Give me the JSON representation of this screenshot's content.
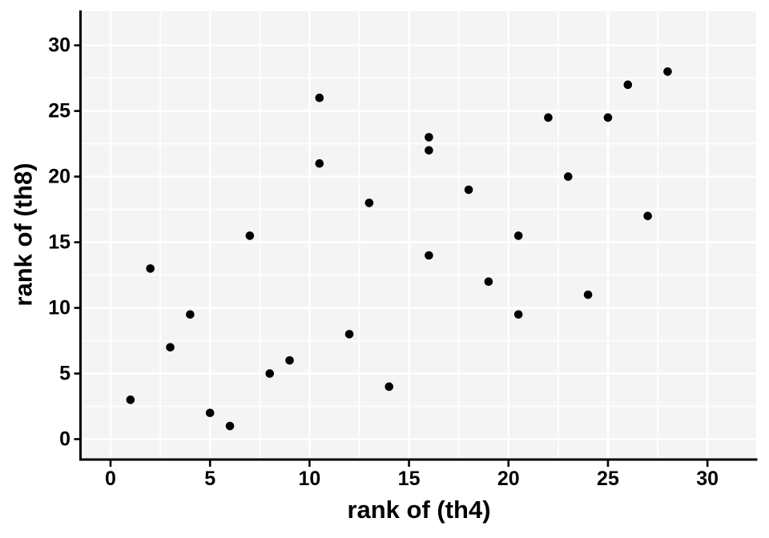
{
  "chart_data": {
    "type": "scatter",
    "title": "",
    "xlabel": "rank of (th4)",
    "ylabel": "rank of (th8)",
    "x_ticks": [
      0,
      5,
      10,
      15,
      20,
      25,
      30
    ],
    "x_tick_labels": [
      "0",
      "5",
      "10",
      "15",
      "20",
      "25",
      "30"
    ],
    "y_ticks": [
      0,
      5,
      10,
      15,
      20,
      25,
      30
    ],
    "y_tick_labels": [
      "0",
      "5",
      "10",
      "15",
      "20",
      "25",
      "30"
    ],
    "x_minor_ticks": [
      2.5,
      7.5,
      12.5,
      17.5,
      22.5,
      27.5
    ],
    "y_minor_ticks": [
      2.5,
      7.5,
      12.5,
      17.5,
      22.5,
      27.5
    ],
    "xlim": [
      -1.45,
      32.45
    ],
    "ylim": [
      -1.43,
      32.6
    ],
    "grid": "major+minor",
    "legend": "none",
    "point_radius": 5.3,
    "points": [
      {
        "x": 1,
        "y": 3
      },
      {
        "x": 2,
        "y": 13
      },
      {
        "x": 3,
        "y": 7
      },
      {
        "x": 4,
        "y": 9.5
      },
      {
        "x": 5,
        "y": 2
      },
      {
        "x": 6,
        "y": 1
      },
      {
        "x": 7,
        "y": 15.5
      },
      {
        "x": 8,
        "y": 5
      },
      {
        "x": 9,
        "y": 6
      },
      {
        "x": 10.5,
        "y": 26
      },
      {
        "x": 10.5,
        "y": 21
      },
      {
        "x": 12,
        "y": 8
      },
      {
        "x": 13,
        "y": 18
      },
      {
        "x": 14,
        "y": 4
      },
      {
        "x": 16,
        "y": 23
      },
      {
        "x": 16,
        "y": 22
      },
      {
        "x": 16,
        "y": 14
      },
      {
        "x": 18,
        "y": 19
      },
      {
        "x": 19,
        "y": 12
      },
      {
        "x": 20.5,
        "y": 15.5
      },
      {
        "x": 20.5,
        "y": 9.5
      },
      {
        "x": 22,
        "y": 24.5
      },
      {
        "x": 23,
        "y": 20
      },
      {
        "x": 24,
        "y": 11
      },
      {
        "x": 25,
        "y": 24.5
      },
      {
        "x": 26,
        "y": 27
      },
      {
        "x": 27,
        "y": 17
      },
      {
        "x": 28,
        "y": 28
      }
    ],
    "colors": {
      "point": "#000000",
      "panel_bg": "#f4f4f4",
      "grid": "#ffffff",
      "axis": "#000000",
      "text": "#000000",
      "background": "#ffffff"
    }
  }
}
